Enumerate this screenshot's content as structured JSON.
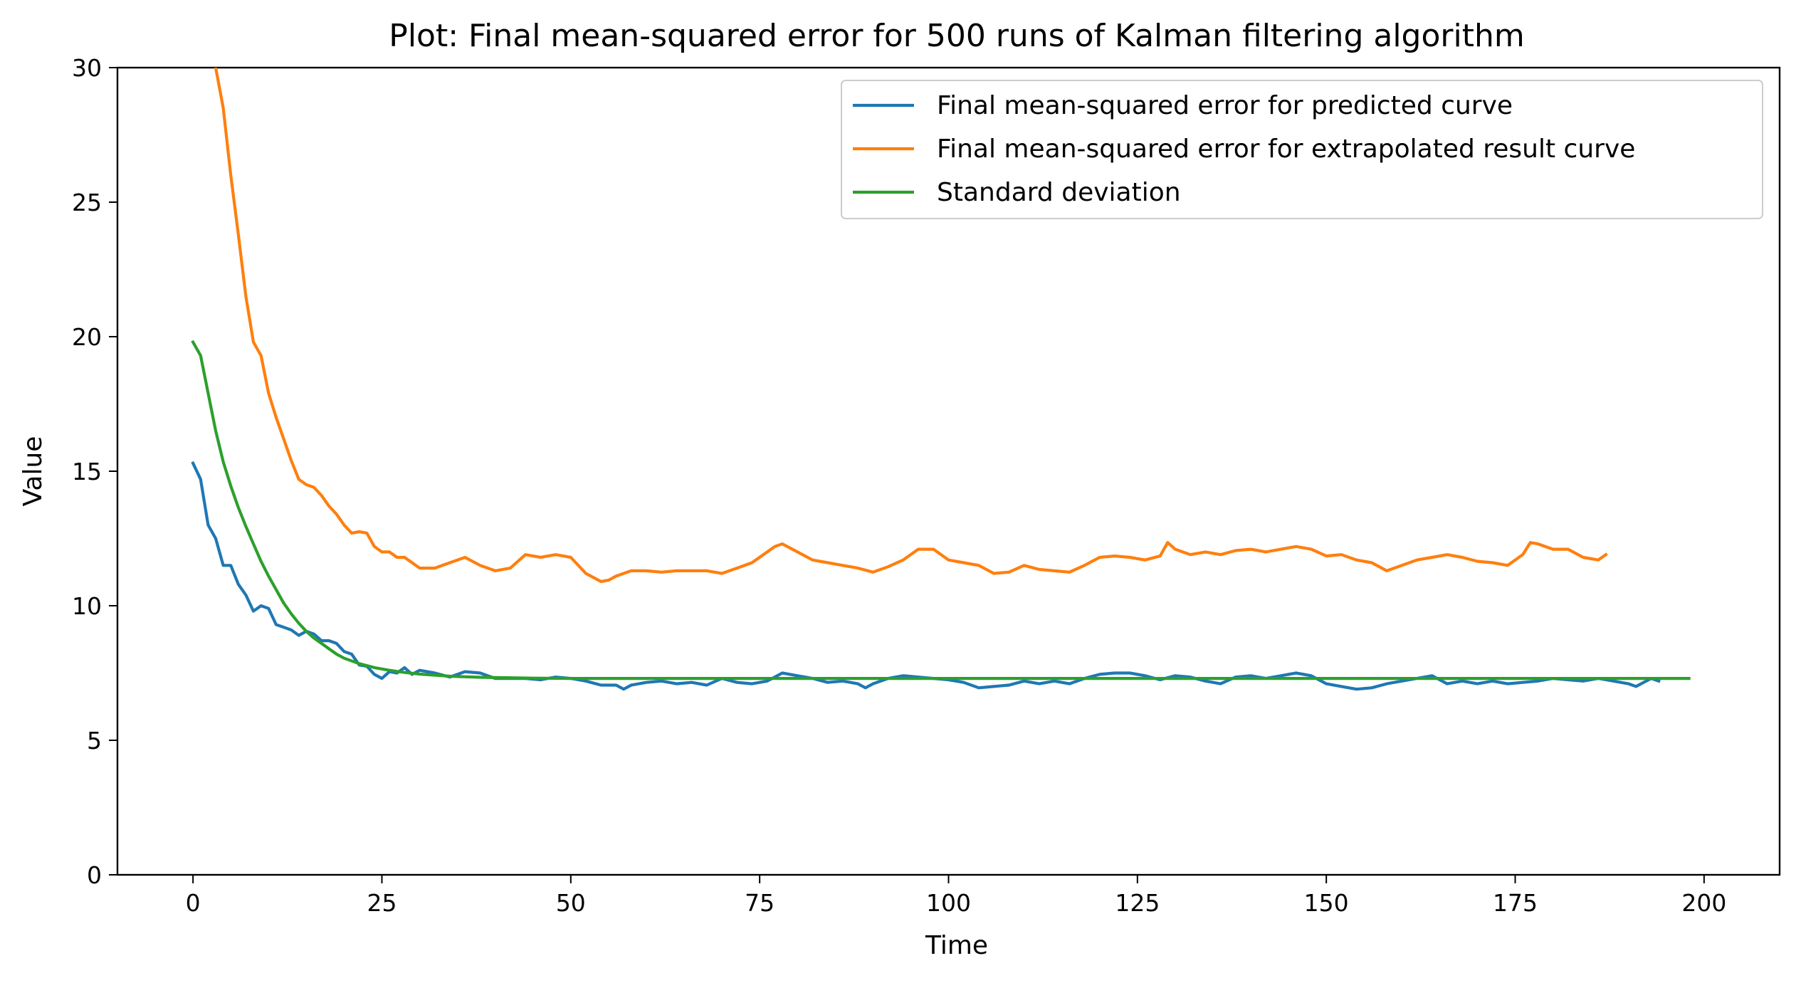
{
  "chart_data": {
    "type": "line",
    "title": "Plot: Final mean-squared error for 500 runs of Kalman filtering algorithm",
    "xlabel": "Time",
    "ylabel": "Value",
    "xlim": [
      -10,
      210
    ],
    "ylim": [
      0,
      30
    ],
    "xticks": [
      0,
      25,
      50,
      75,
      100,
      125,
      150,
      175,
      200
    ],
    "yticks": [
      0,
      5,
      10,
      15,
      20,
      25,
      30
    ],
    "grid": false,
    "legend_position": "upper right",
    "series": [
      {
        "name": "Final mean-squared error for predicted curve",
        "color": "#1f77b4",
        "x": [
          0,
          1,
          2,
          3,
          4,
          5,
          6,
          7,
          8,
          9,
          10,
          11,
          12,
          13,
          14,
          15,
          16,
          17,
          18,
          19,
          20,
          21,
          22,
          23,
          24,
          25,
          26,
          27,
          28,
          29,
          30,
          32,
          34,
          36,
          38,
          40,
          42,
          44,
          46,
          48,
          50,
          52,
          54,
          56,
          57,
          58,
          60,
          62,
          64,
          66,
          68,
          70,
          72,
          74,
          76,
          78,
          80,
          82,
          84,
          86,
          88,
          89,
          90,
          92,
          94,
          96,
          98,
          100,
          102,
          104,
          106,
          108,
          110,
          112,
          114,
          116,
          118,
          120,
          122,
          124,
          126,
          128,
          130,
          132,
          134,
          136,
          138,
          140,
          142,
          144,
          146,
          148,
          150,
          152,
          154,
          156,
          158,
          160,
          162,
          164,
          166,
          168,
          170,
          172,
          174,
          176,
          178,
          180,
          182,
          184,
          186,
          188,
          190,
          191,
          192,
          193,
          194
        ],
        "y": [
          15.3,
          14.7,
          13.0,
          12.5,
          11.5,
          11.5,
          10.8,
          10.4,
          9.8,
          10.0,
          9.9,
          9.3,
          9.2,
          9.1,
          8.9,
          9.05,
          8.95,
          8.7,
          8.7,
          8.6,
          8.3,
          8.2,
          7.8,
          7.75,
          7.45,
          7.3,
          7.55,
          7.5,
          7.7,
          7.45,
          7.6,
          7.5,
          7.35,
          7.55,
          7.5,
          7.3,
          7.3,
          7.3,
          7.25,
          7.35,
          7.3,
          7.2,
          7.05,
          7.05,
          6.9,
          7.05,
          7.15,
          7.2,
          7.1,
          7.15,
          7.05,
          7.3,
          7.15,
          7.1,
          7.2,
          7.5,
          7.4,
          7.3,
          7.15,
          7.2,
          7.1,
          6.95,
          7.1,
          7.3,
          7.4,
          7.35,
          7.3,
          7.25,
          7.15,
          6.95,
          7.0,
          7.05,
          7.2,
          7.1,
          7.2,
          7.1,
          7.3,
          7.45,
          7.5,
          7.5,
          7.4,
          7.25,
          7.4,
          7.35,
          7.2,
          7.1,
          7.35,
          7.4,
          7.3,
          7.4,
          7.5,
          7.4,
          7.1,
          7.0,
          6.9,
          6.95,
          7.1,
          7.2,
          7.3,
          7.4,
          7.1,
          7.2,
          7.1,
          7.2,
          7.1,
          7.15,
          7.2,
          7.3,
          7.25,
          7.2,
          7.3,
          7.2,
          7.1,
          7.0,
          7.15,
          7.3,
          7.2
        ]
      },
      {
        "name": "Final mean-squared error for extrapolated result curve",
        "color": "#ff7f0e",
        "x": [
          3,
          4,
          5,
          6,
          7,
          8,
          9,
          10,
          11,
          12,
          13,
          14,
          15,
          16,
          17,
          18,
          19,
          20,
          21,
          22,
          23,
          24,
          25,
          26,
          27,
          28,
          29,
          30,
          32,
          34,
          36,
          38,
          40,
          42,
          44,
          46,
          48,
          50,
          52,
          54,
          55,
          56,
          58,
          60,
          62,
          64,
          66,
          68,
          70,
          72,
          74,
          76,
          77,
          78,
          80,
          82,
          84,
          86,
          88,
          90,
          92,
          94,
          96,
          98,
          100,
          102,
          104,
          106,
          108,
          110,
          112,
          114,
          116,
          118,
          120,
          122,
          124,
          126,
          128,
          129,
          130,
          132,
          134,
          136,
          138,
          140,
          142,
          144,
          146,
          148,
          150,
          152,
          154,
          156,
          158,
          160,
          162,
          164,
          166,
          168,
          170,
          172,
          174,
          176,
          177,
          178,
          180,
          182,
          184,
          186,
          187
        ],
        "y": [
          30.0,
          28.5,
          26.0,
          23.8,
          21.5,
          19.8,
          19.3,
          17.9,
          17.0,
          16.2,
          15.4,
          14.7,
          14.5,
          14.4,
          14.1,
          13.7,
          13.4,
          13.0,
          12.7,
          12.75,
          12.7,
          12.2,
          12.0,
          12.0,
          11.8,
          11.8,
          11.6,
          11.4,
          11.4,
          11.6,
          11.8,
          11.5,
          11.3,
          11.4,
          11.9,
          11.8,
          11.9,
          11.8,
          11.2,
          10.9,
          10.95,
          11.1,
          11.3,
          11.3,
          11.25,
          11.3,
          11.3,
          11.3,
          11.2,
          11.4,
          11.6,
          12.0,
          12.2,
          12.3,
          12.0,
          11.7,
          11.6,
          11.5,
          11.4,
          11.25,
          11.45,
          11.7,
          12.1,
          12.1,
          11.7,
          11.6,
          11.5,
          11.2,
          11.25,
          11.5,
          11.35,
          11.3,
          11.25,
          11.5,
          11.8,
          11.85,
          11.8,
          11.7,
          11.85,
          12.35,
          12.1,
          11.9,
          12.0,
          11.9,
          12.05,
          12.1,
          12.0,
          12.1,
          12.2,
          12.1,
          11.85,
          11.9,
          11.7,
          11.6,
          11.3,
          11.5,
          11.7,
          11.8,
          11.9,
          11.8,
          11.65,
          11.6,
          11.5,
          11.9,
          12.35,
          12.3,
          12.1,
          12.1,
          11.8,
          11.7,
          11.9
        ]
      },
      {
        "name": "Standard deviation",
        "color": "#2ca02c",
        "x": [
          0,
          1,
          2,
          3,
          4,
          5,
          6,
          7,
          8,
          9,
          10,
          11,
          12,
          13,
          14,
          15,
          16,
          17,
          18,
          19,
          20,
          22,
          24,
          26,
          28,
          30,
          32,
          34,
          36,
          38,
          40,
          45,
          50,
          60,
          80,
          100,
          125,
          150,
          175,
          198
        ],
        "y": [
          19.8,
          19.3,
          17.9,
          16.5,
          15.35,
          14.45,
          13.65,
          12.95,
          12.3,
          11.65,
          11.1,
          10.6,
          10.1,
          9.7,
          9.35,
          9.05,
          8.8,
          8.6,
          8.4,
          8.2,
          8.05,
          7.85,
          7.7,
          7.6,
          7.52,
          7.46,
          7.42,
          7.38,
          7.36,
          7.34,
          7.33,
          7.31,
          7.3,
          7.3,
          7.3,
          7.3,
          7.3,
          7.3,
          7.3,
          7.3
        ]
      }
    ]
  }
}
